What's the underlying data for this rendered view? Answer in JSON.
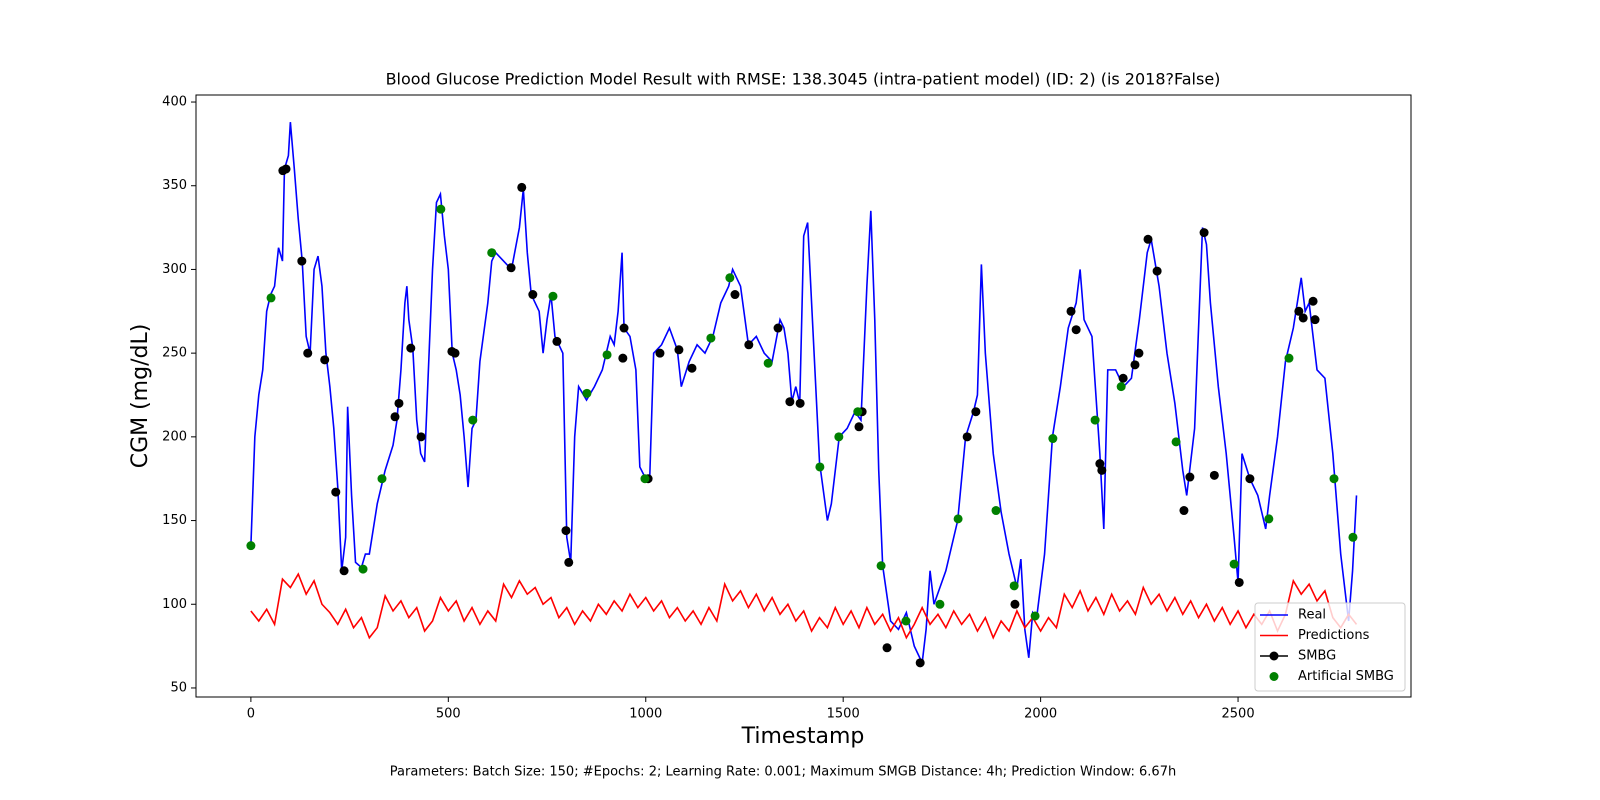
{
  "chart_data": {
    "type": "line",
    "title": "Blood Glucose Prediction Model Result with RMSE: 138.3045 (intra-patient model) (ID: 2) (is 2018?False)",
    "x_label": "Timestamp",
    "y_label": "CGM (mg/dL)",
    "footer": "Parameters: Batch Size: 150; #Epochs: 2; Learning Rate: 0.001; Maximum SMGB Distance: 4h; Prediction Window: 6.67h",
    "xlim": [
      -139,
      2938
    ],
    "ylim": [
      44.6,
      404.2
    ],
    "xticks": [
      0,
      500,
      1000,
      1500,
      2000,
      2500
    ],
    "yticks": [
      50,
      100,
      150,
      200,
      250,
      300,
      350,
      400
    ],
    "legend": "lower right",
    "series": [
      {
        "name": "Real",
        "color": "#0000ff",
        "style": "line",
        "x": [
          0,
          10,
          20,
          30,
          40,
          50,
          60,
          70,
          80,
          85,
          95,
          100,
          110,
          120,
          130,
          140,
          150,
          160,
          170,
          180,
          190,
          200,
          210,
          220,
          230,
          240,
          245,
          255,
          265,
          280,
          290,
          300,
          320,
          340,
          360,
          370,
          380,
          390,
          395,
          400,
          410,
          420,
          430,
          440,
          460,
          470,
          480,
          490,
          500,
          510,
          520,
          530,
          540,
          550,
          560,
          570,
          580,
          600,
          610,
          620,
          640,
          660,
          680,
          690,
          700,
          710,
          730,
          740,
          750,
          760,
          770,
          790,
          800,
          810,
          820,
          830,
          850,
          870,
          890,
          900,
          910,
          920,
          930,
          940,
          945,
          960,
          975,
          985,
          1000,
          1010,
          1020,
          1040,
          1060,
          1080,
          1090,
          1110,
          1130,
          1150,
          1170,
          1190,
          1210,
          1220,
          1240,
          1260,
          1280,
          1300,
          1320,
          1340,
          1350,
          1360,
          1370,
          1380,
          1390,
          1400,
          1410,
          1420,
          1440,
          1460,
          1470,
          1490,
          1510,
          1530,
          1545,
          1560,
          1570,
          1580,
          1590,
          1600,
          1620,
          1640,
          1660,
          1680,
          1700,
          1710,
          1720,
          1730,
          1760,
          1790,
          1810,
          1830,
          1840,
          1850,
          1860,
          1880,
          1900,
          1920,
          1940,
          1950,
          1960,
          1970,
          1980,
          1990,
          2010,
          2030,
          2050,
          2070,
          2090,
          2100,
          2110,
          2130,
          2150,
          2160,
          2170,
          2190,
          2210,
          2230,
          2250,
          2270,
          2280,
          2300,
          2320,
          2340,
          2360,
          2370,
          2390,
          2410,
          2420,
          2430,
          2450,
          2470,
          2490,
          2500,
          2510,
          2530,
          2550,
          2570,
          2580,
          2600,
          2620,
          2640,
          2660,
          2670,
          2680,
          2700,
          2720,
          2740,
          2760,
          2780,
          2790,
          2800
        ],
        "values": [
          135,
          200,
          225,
          240,
          275,
          285,
          290,
          313,
          305,
          360,
          368,
          388,
          360,
          330,
          305,
          260,
          250,
          300,
          308,
          290,
          250,
          230,
          205,
          170,
          120,
          140,
          218,
          165,
          125,
          122,
          130,
          130,
          160,
          180,
          195,
          210,
          240,
          280,
          290,
          270,
          253,
          210,
          190,
          185,
          300,
          340,
          345,
          320,
          300,
          250,
          240,
          225,
          200,
          170,
          205,
          210,
          245,
          280,
          305,
          310,
          305,
          300,
          325,
          348,
          310,
          285,
          275,
          250,
          270,
          285,
          260,
          250,
          140,
          125,
          200,
          230,
          222,
          230,
          240,
          250,
          260,
          255,
          275,
          310,
          265,
          260,
          240,
          182,
          175,
          175,
          250,
          255,
          265,
          252,
          230,
          245,
          255,
          250,
          260,
          280,
          290,
          300,
          290,
          255,
          260,
          250,
          245,
          270,
          265,
          250,
          221,
          230,
          220,
          320,
          328,
          280,
          185,
          150,
          160,
          200,
          205,
          215,
          210,
          290,
          335,
          270,
          180,
          123,
          90,
          85,
          95,
          75,
          65,
          85,
          120,
          100,
          120,
          150,
          200,
          215,
          225,
          303,
          250,
          190,
          155,
          130,
          110,
          127,
          85,
          68,
          95,
          92,
          130,
          200,
          230,
          265,
          280,
          300,
          270,
          260,
          190,
          145,
          240,
          240,
          230,
          235,
          270,
          310,
          318,
          290,
          250,
          220,
          180,
          165,
          205,
          325,
          315,
          280,
          230,
          190,
          140,
          113,
          190,
          175,
          165,
          145,
          165,
          200,
          245,
          265,
          295,
          275,
          280,
          240,
          235,
          190,
          130,
          90,
          120,
          165
        ]
      },
      {
        "name": "Predictions",
        "color": "#ff0000",
        "style": "line",
        "x": [
          0,
          20,
          40,
          60,
          80,
          100,
          120,
          140,
          160,
          180,
          200,
          220,
          240,
          260,
          280,
          300,
          320,
          340,
          360,
          380,
          400,
          420,
          440,
          460,
          480,
          500,
          520,
          540,
          560,
          580,
          600,
          620,
          640,
          660,
          680,
          700,
          720,
          740,
          760,
          780,
          800,
          820,
          840,
          860,
          880,
          900,
          920,
          940,
          960,
          980,
          1000,
          1020,
          1040,
          1060,
          1080,
          1100,
          1120,
          1140,
          1160,
          1180,
          1200,
          1220,
          1240,
          1260,
          1280,
          1300,
          1320,
          1340,
          1360,
          1380,
          1400,
          1420,
          1440,
          1460,
          1480,
          1500,
          1520,
          1540,
          1560,
          1580,
          1600,
          1620,
          1640,
          1660,
          1680,
          1700,
          1720,
          1740,
          1760,
          1780,
          1800,
          1820,
          1840,
          1860,
          1880,
          1900,
          1920,
          1940,
          1960,
          1980,
          2000,
          2020,
          2040,
          2060,
          2080,
          2100,
          2120,
          2140,
          2160,
          2180,
          2200,
          2220,
          2240,
          2260,
          2280,
          2300,
          2320,
          2340,
          2360,
          2380,
          2400,
          2420,
          2440,
          2460,
          2480,
          2500,
          2520,
          2540,
          2560,
          2580,
          2600,
          2620,
          2640,
          2660,
          2680,
          2700,
          2720,
          2740,
          2760,
          2780,
          2800
        ],
        "values": [
          96,
          90,
          97,
          88,
          115,
          110,
          118,
          106,
          114,
          100,
          95,
          88,
          97,
          86,
          92,
          80,
          86,
          105,
          96,
          102,
          92,
          98,
          84,
          90,
          104,
          96,
          102,
          90,
          98,
          88,
          96,
          90,
          112,
          104,
          114,
          106,
          110,
          100,
          104,
          92,
          98,
          88,
          96,
          90,
          100,
          94,
          102,
          96,
          106,
          98,
          104,
          96,
          102,
          92,
          98,
          90,
          96,
          88,
          98,
          90,
          112,
          102,
          108,
          98,
          106,
          96,
          104,
          94,
          100,
          90,
          96,
          84,
          92,
          86,
          98,
          88,
          96,
          86,
          98,
          88,
          94,
          84,
          92,
          80,
          88,
          98,
          88,
          94,
          86,
          96,
          88,
          94,
          84,
          92,
          80,
          90,
          84,
          96,
          86,
          92,
          84,
          92,
          86,
          106,
          98,
          108,
          96,
          104,
          94,
          106,
          96,
          102,
          94,
          110,
          100,
          106,
          96,
          104,
          94,
          102,
          92,
          100,
          90,
          98,
          88,
          96,
          86,
          94,
          88,
          96,
          84,
          94,
          114,
          106,
          112,
          102,
          108,
          92,
          86,
          94,
          88
        ]
      },
      {
        "name": "SMBG",
        "color": "#000000",
        "style": "marker-line",
        "x": [
          81,
          89,
          129,
          144,
          187,
          215,
          236,
          365,
          375,
          405,
          431,
          509,
          517,
          659,
          686,
          714,
          775,
          798,
          805,
          942,
          945,
          1006,
          1036,
          1084,
          1117,
          1226,
          1261,
          1335,
          1365,
          1391,
          1540,
          1548,
          1611,
          1695,
          1814,
          1836,
          1935,
          2077,
          2090,
          2150,
          2155,
          2209,
          2239,
          2249,
          2272,
          2295,
          2363,
          2378,
          2414,
          2440,
          2503,
          2530,
          2654,
          2665,
          2690,
          2695
        ],
        "values": [
          359,
          360,
          305,
          250,
          246,
          167,
          120,
          212,
          220,
          253,
          200,
          251,
          250,
          301,
          349,
          285,
          257,
          144,
          125,
          247,
          265,
          175,
          250,
          252,
          241,
          285,
          255,
          265,
          221,
          220,
          206,
          215,
          74,
          65,
          200,
          215,
          100,
          275,
          264,
          184,
          180,
          235,
          243,
          250,
          318,
          299,
          156,
          176,
          322,
          177,
          113,
          175,
          275,
          271,
          281,
          270
        ]
      },
      {
        "name": "Artificial SMBG",
        "color": "#008000",
        "style": "marker",
        "x": [
          0,
          51,
          284,
          332,
          481,
          562,
          610,
          765,
          851,
          902,
          998,
          1165,
          1213,
          1310,
          1441,
          1489,
          1537,
          1596,
          1659,
          1745,
          1791,
          1887,
          1933,
          1986,
          2031,
          2138,
          2204,
          2343,
          2490,
          2578,
          2629,
          2743,
          2791
        ],
        "values": [
          135,
          283,
          121,
          175,
          336,
          210,
          310,
          284,
          226,
          249,
          175,
          259,
          295,
          244,
          182,
          200,
          215,
          123,
          90,
          100,
          151,
          156,
          111,
          93,
          199,
          210,
          230,
          197,
          124,
          151,
          247,
          175,
          140
        ]
      }
    ]
  }
}
